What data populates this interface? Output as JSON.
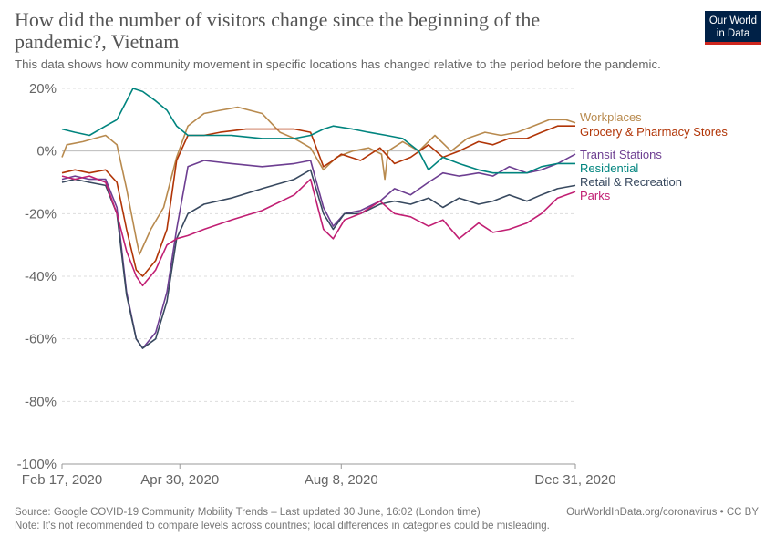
{
  "title": "How did the number of visitors change since the beginning of the pandemic?, Vietnam",
  "subtitle": "This data shows how community movement in specific locations has changed relative to the period before the pandemic.",
  "logo": {
    "line1": "Our World",
    "line2": "in Data"
  },
  "footer": {
    "source": "Source: Google COVID-19 Community Mobility Trends – Last updated 30 June, 16:02 (London time)",
    "note": "Note: It's not recommended to compare levels across countries; local differences in categories could be misleading.",
    "url": "OurWorldInData.org/coronavirus • CC BY"
  },
  "colors": {
    "accent": "#ce261e",
    "brand": "#002147"
  },
  "chart_data": {
    "type": "line",
    "x_unit": "date",
    "xlim": [
      "2020-02-17",
      "2020-12-31"
    ],
    "ylim": [
      -100,
      20
    ],
    "y_ticks": [
      20,
      0,
      -20,
      -40,
      -60,
      -80,
      -100
    ],
    "y_tick_labels": [
      "20%",
      "0%",
      "-20%",
      "-40%",
      "-60%",
      "-80%",
      "-100%"
    ],
    "x_ticks": [
      "2020-02-17",
      "2020-04-30",
      "2020-08-08",
      "2020-12-31"
    ],
    "x_tick_labels": [
      "Feb 17, 2020",
      "Apr 30, 2020",
      "Aug 8, 2020",
      "Dec 31, 2020"
    ],
    "grid": "horizontal dashed",
    "legend": "right, labels at line ends",
    "series": [
      {
        "name": "Workplaces",
        "color": "#b88a4e",
        "points": [
          [
            "2020-02-17",
            -2
          ],
          [
            "2020-02-20",
            2
          ],
          [
            "2020-03-01",
            3
          ],
          [
            "2020-03-08",
            4
          ],
          [
            "2020-03-15",
            5
          ],
          [
            "2020-03-22",
            2
          ],
          [
            "2020-03-28",
            -12
          ],
          [
            "2020-04-03",
            -28
          ],
          [
            "2020-04-05",
            -33
          ],
          [
            "2020-04-12",
            -25
          ],
          [
            "2020-04-20",
            -18
          ],
          [
            "2020-04-28",
            -2
          ],
          [
            "2020-05-05",
            8
          ],
          [
            "2020-05-15",
            12
          ],
          [
            "2020-05-25",
            13
          ],
          [
            "2020-06-05",
            14
          ],
          [
            "2020-06-20",
            12
          ],
          [
            "2020-07-01",
            6
          ],
          [
            "2020-07-10",
            4
          ],
          [
            "2020-07-20",
            1
          ],
          [
            "2020-07-28",
            -6
          ],
          [
            "2020-08-05",
            -2
          ],
          [
            "2020-08-15",
            0
          ],
          [
            "2020-08-25",
            1
          ],
          [
            "2020-09-02",
            -1
          ],
          [
            "2020-09-04",
            -9
          ],
          [
            "2020-09-06",
            0
          ],
          [
            "2020-09-15",
            3
          ],
          [
            "2020-09-25",
            0
          ],
          [
            "2020-10-05",
            5
          ],
          [
            "2020-10-15",
            0
          ],
          [
            "2020-10-25",
            4
          ],
          [
            "2020-11-05",
            6
          ],
          [
            "2020-11-15",
            5
          ],
          [
            "2020-11-25",
            6
          ],
          [
            "2020-12-05",
            8
          ],
          [
            "2020-12-15",
            10
          ],
          [
            "2020-12-25",
            10
          ],
          [
            "2020-12-31",
            9
          ]
        ]
      },
      {
        "name": "Grocery & Pharmacy Stores",
        "color": "#b13507",
        "points": [
          [
            "2020-02-17",
            -7
          ],
          [
            "2020-02-25",
            -6
          ],
          [
            "2020-03-05",
            -7
          ],
          [
            "2020-03-15",
            -6
          ],
          [
            "2020-03-22",
            -10
          ],
          [
            "2020-03-28",
            -25
          ],
          [
            "2020-04-03",
            -38
          ],
          [
            "2020-04-07",
            -40
          ],
          [
            "2020-04-15",
            -35
          ],
          [
            "2020-04-22",
            -25
          ],
          [
            "2020-04-28",
            -3
          ],
          [
            "2020-05-05",
            5
          ],
          [
            "2020-05-15",
            5
          ],
          [
            "2020-05-25",
            6
          ],
          [
            "2020-06-10",
            7
          ],
          [
            "2020-06-25",
            7
          ],
          [
            "2020-07-10",
            7
          ],
          [
            "2020-07-20",
            6
          ],
          [
            "2020-07-28",
            -5
          ],
          [
            "2020-08-03",
            -3
          ],
          [
            "2020-08-08",
            -1
          ],
          [
            "2020-08-20",
            -3
          ],
          [
            "2020-09-01",
            1
          ],
          [
            "2020-09-10",
            -4
          ],
          [
            "2020-09-20",
            -2
          ],
          [
            "2020-10-01",
            2
          ],
          [
            "2020-10-10",
            -2
          ],
          [
            "2020-10-20",
            0
          ],
          [
            "2020-11-01",
            3
          ],
          [
            "2020-11-10",
            2
          ],
          [
            "2020-11-20",
            4
          ],
          [
            "2020-12-01",
            4
          ],
          [
            "2020-12-10",
            6
          ],
          [
            "2020-12-20",
            8
          ],
          [
            "2020-12-31",
            8
          ]
        ]
      },
      {
        "name": "Transit Stations",
        "color": "#6d3e91",
        "points": [
          [
            "2020-02-17",
            -9
          ],
          [
            "2020-02-25",
            -8
          ],
          [
            "2020-03-05",
            -9
          ],
          [
            "2020-03-15",
            -9
          ],
          [
            "2020-03-22",
            -18
          ],
          [
            "2020-03-28",
            -45
          ],
          [
            "2020-04-03",
            -60
          ],
          [
            "2020-04-07",
            -63
          ],
          [
            "2020-04-15",
            -58
          ],
          [
            "2020-04-22",
            -45
          ],
          [
            "2020-04-28",
            -25
          ],
          [
            "2020-05-05",
            -5
          ],
          [
            "2020-05-15",
            -3
          ],
          [
            "2020-06-01",
            -4
          ],
          [
            "2020-06-20",
            -5
          ],
          [
            "2020-07-10",
            -4
          ],
          [
            "2020-07-20",
            -3
          ],
          [
            "2020-07-28",
            -18
          ],
          [
            "2020-08-03",
            -24
          ],
          [
            "2020-08-10",
            -20
          ],
          [
            "2020-08-20",
            -19
          ],
          [
            "2020-09-01",
            -16
          ],
          [
            "2020-09-10",
            -12
          ],
          [
            "2020-09-20",
            -14
          ],
          [
            "2020-10-01",
            -10
          ],
          [
            "2020-10-10",
            -7
          ],
          [
            "2020-10-20",
            -8
          ],
          [
            "2020-11-01",
            -7
          ],
          [
            "2020-11-10",
            -8
          ],
          [
            "2020-11-20",
            -5
          ],
          [
            "2020-12-01",
            -7
          ],
          [
            "2020-12-10",
            -6
          ],
          [
            "2020-12-20",
            -4
          ],
          [
            "2020-12-31",
            -1
          ]
        ]
      },
      {
        "name": "Residential",
        "color": "#00847e",
        "points": [
          [
            "2020-02-17",
            7
          ],
          [
            "2020-02-25",
            6
          ],
          [
            "2020-03-05",
            5
          ],
          [
            "2020-03-15",
            8
          ],
          [
            "2020-03-22",
            10
          ],
          [
            "2020-03-28",
            16
          ],
          [
            "2020-04-01",
            20
          ],
          [
            "2020-04-07",
            19
          ],
          [
            "2020-04-15",
            16
          ],
          [
            "2020-04-22",
            13
          ],
          [
            "2020-04-28",
            8
          ],
          [
            "2020-05-05",
            5
          ],
          [
            "2020-05-15",
            5
          ],
          [
            "2020-06-01",
            5
          ],
          [
            "2020-06-20",
            4
          ],
          [
            "2020-07-10",
            4
          ],
          [
            "2020-07-20",
            5
          ],
          [
            "2020-07-28",
            7
          ],
          [
            "2020-08-03",
            8
          ],
          [
            "2020-08-15",
            7
          ],
          [
            "2020-08-25",
            6
          ],
          [
            "2020-09-05",
            5
          ],
          [
            "2020-09-15",
            4
          ],
          [
            "2020-09-25",
            0
          ],
          [
            "2020-10-01",
            -6
          ],
          [
            "2020-10-10",
            -2
          ],
          [
            "2020-10-20",
            -4
          ],
          [
            "2020-11-01",
            -6
          ],
          [
            "2020-11-10",
            -7
          ],
          [
            "2020-11-20",
            -7
          ],
          [
            "2020-12-01",
            -7
          ],
          [
            "2020-12-10",
            -5
          ],
          [
            "2020-12-20",
            -4
          ],
          [
            "2020-12-31",
            -4
          ]
        ]
      },
      {
        "name": "Retail & Recreation",
        "color": "#38495f",
        "points": [
          [
            "2020-02-17",
            -10
          ],
          [
            "2020-02-25",
            -9
          ],
          [
            "2020-03-05",
            -10
          ],
          [
            "2020-03-15",
            -11
          ],
          [
            "2020-03-22",
            -20
          ],
          [
            "2020-03-28",
            -46
          ],
          [
            "2020-04-03",
            -60
          ],
          [
            "2020-04-07",
            -63
          ],
          [
            "2020-04-15",
            -60
          ],
          [
            "2020-04-22",
            -48
          ],
          [
            "2020-04-28",
            -28
          ],
          [
            "2020-05-05",
            -20
          ],
          [
            "2020-05-15",
            -17
          ],
          [
            "2020-06-01",
            -15
          ],
          [
            "2020-06-20",
            -12
          ],
          [
            "2020-07-10",
            -9
          ],
          [
            "2020-07-20",
            -6
          ],
          [
            "2020-07-28",
            -20
          ],
          [
            "2020-08-03",
            -25
          ],
          [
            "2020-08-10",
            -20
          ],
          [
            "2020-08-20",
            -20
          ],
          [
            "2020-09-01",
            -17
          ],
          [
            "2020-09-10",
            -16
          ],
          [
            "2020-09-20",
            -17
          ],
          [
            "2020-10-01",
            -15
          ],
          [
            "2020-10-10",
            -18
          ],
          [
            "2020-10-20",
            -15
          ],
          [
            "2020-11-01",
            -17
          ],
          [
            "2020-11-10",
            -16
          ],
          [
            "2020-11-20",
            -14
          ],
          [
            "2020-12-01",
            -16
          ],
          [
            "2020-12-10",
            -14
          ],
          [
            "2020-12-20",
            -12
          ],
          [
            "2020-12-31",
            -11
          ]
        ]
      },
      {
        "name": "Parks",
        "color": "#c11f73",
        "points": [
          [
            "2020-02-17",
            -8
          ],
          [
            "2020-02-25",
            -9
          ],
          [
            "2020-03-05",
            -8
          ],
          [
            "2020-03-15",
            -10
          ],
          [
            "2020-03-22",
            -20
          ],
          [
            "2020-03-28",
            -32
          ],
          [
            "2020-04-03",
            -40
          ],
          [
            "2020-04-07",
            -43
          ],
          [
            "2020-04-15",
            -38
          ],
          [
            "2020-04-22",
            -30
          ],
          [
            "2020-04-28",
            -28
          ],
          [
            "2020-05-05",
            -27
          ],
          [
            "2020-05-15",
            -25
          ],
          [
            "2020-06-01",
            -22
          ],
          [
            "2020-06-20",
            -19
          ],
          [
            "2020-07-10",
            -14
          ],
          [
            "2020-07-20",
            -9
          ],
          [
            "2020-07-28",
            -25
          ],
          [
            "2020-08-03",
            -28
          ],
          [
            "2020-08-10",
            -22
          ],
          [
            "2020-08-20",
            -20
          ],
          [
            "2020-09-01",
            -16
          ],
          [
            "2020-09-10",
            -20
          ],
          [
            "2020-09-20",
            -21
          ],
          [
            "2020-10-01",
            -24
          ],
          [
            "2020-10-10",
            -22
          ],
          [
            "2020-10-20",
            -28
          ],
          [
            "2020-11-01",
            -23
          ],
          [
            "2020-11-10",
            -26
          ],
          [
            "2020-11-20",
            -25
          ],
          [
            "2020-12-01",
            -23
          ],
          [
            "2020-12-10",
            -20
          ],
          [
            "2020-12-20",
            -15
          ],
          [
            "2020-12-31",
            -13
          ]
        ]
      }
    ]
  }
}
